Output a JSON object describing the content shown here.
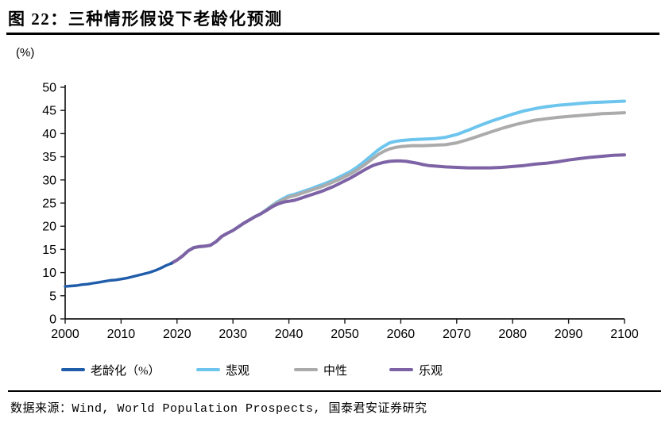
{
  "header": {
    "title": "图 22：三种情形假设下老龄化预测"
  },
  "footer": {
    "source": "数据来源：Wind, World Population Prospects, 国泰君安证券研究"
  },
  "colors": {
    "aging": "#1F5CA9",
    "pessimistic": "#6DC5EE",
    "neutral": "#ABABAB",
    "optimistic": "#7D63A5",
    "axis": "#1a1a1a",
    "rule": "#000000"
  },
  "chart_data": {
    "type": "line",
    "title": "三种情形假设下老龄化预测",
    "xlabel": "",
    "ylabel": "(%)",
    "xlim": [
      2000,
      2100
    ],
    "ylim": [
      0,
      50
    ],
    "x_ticks": [
      2000,
      2010,
      2020,
      2030,
      2040,
      2050,
      2060,
      2070,
      2080,
      2090,
      2100
    ],
    "y_ticks": [
      0,
      5,
      10,
      15,
      20,
      25,
      30,
      35,
      40,
      45,
      50
    ],
    "grid": false,
    "legend_position": "bottom",
    "series": [
      {
        "id": "aging",
        "name": "老龄化（%）",
        "color": "#1F5CA9",
        "points": [
          [
            2000,
            7.0
          ],
          [
            2001,
            7.1
          ],
          [
            2002,
            7.2
          ],
          [
            2003,
            7.4
          ],
          [
            2004,
            7.5
          ],
          [
            2005,
            7.7
          ],
          [
            2006,
            7.9
          ],
          [
            2007,
            8.1
          ],
          [
            2008,
            8.3
          ],
          [
            2009,
            8.4
          ],
          [
            2010,
            8.6
          ],
          [
            2011,
            8.8
          ],
          [
            2012,
            9.1
          ],
          [
            2013,
            9.4
          ],
          [
            2014,
            9.7
          ],
          [
            2015,
            10.0
          ],
          [
            2016,
            10.4
          ],
          [
            2017,
            10.9
          ],
          [
            2018,
            11.5
          ],
          [
            2019,
            12.0
          ]
        ]
      },
      {
        "id": "pessimistic",
        "name": "悲观",
        "color": "#6DC5EE",
        "points": [
          [
            2019,
            12.0
          ],
          [
            2020,
            12.7
          ],
          [
            2021,
            13.6
          ],
          [
            2022,
            14.7
          ],
          [
            2023,
            15.4
          ],
          [
            2024,
            15.6
          ],
          [
            2025,
            15.7
          ],
          [
            2026,
            15.9
          ],
          [
            2027,
            16.7
          ],
          [
            2028,
            17.8
          ],
          [
            2029,
            18.5
          ],
          [
            2030,
            19.1
          ],
          [
            2031,
            19.9
          ],
          [
            2032,
            20.7
          ],
          [
            2033,
            21.4
          ],
          [
            2034,
            22.1
          ],
          [
            2035,
            22.7
          ],
          [
            2036,
            23.6
          ],
          [
            2037,
            24.5
          ],
          [
            2038,
            25.3
          ],
          [
            2039,
            26.0
          ],
          [
            2040,
            26.6
          ],
          [
            2041,
            26.9
          ],
          [
            2042,
            27.3
          ],
          [
            2043,
            27.7
          ],
          [
            2044,
            28.1
          ],
          [
            2045,
            28.6
          ],
          [
            2046,
            29.0
          ],
          [
            2047,
            29.5
          ],
          [
            2048,
            30.0
          ],
          [
            2049,
            30.6
          ],
          [
            2050,
            31.2
          ],
          [
            2051,
            31.8
          ],
          [
            2052,
            32.6
          ],
          [
            2053,
            33.5
          ],
          [
            2054,
            34.5
          ],
          [
            2055,
            35.5
          ],
          [
            2056,
            36.5
          ],
          [
            2057,
            37.3
          ],
          [
            2058,
            38.0
          ],
          [
            2059,
            38.3
          ],
          [
            2060,
            38.5
          ],
          [
            2062,
            38.7
          ],
          [
            2064,
            38.8
          ],
          [
            2066,
            38.9
          ],
          [
            2068,
            39.2
          ],
          [
            2070,
            39.8
          ],
          [
            2072,
            40.7
          ],
          [
            2074,
            41.7
          ],
          [
            2076,
            42.6
          ],
          [
            2078,
            43.4
          ],
          [
            2080,
            44.2
          ],
          [
            2082,
            44.9
          ],
          [
            2084,
            45.4
          ],
          [
            2086,
            45.8
          ],
          [
            2088,
            46.1
          ],
          [
            2090,
            46.3
          ],
          [
            2092,
            46.5
          ],
          [
            2094,
            46.7
          ],
          [
            2096,
            46.8
          ],
          [
            2098,
            46.9
          ],
          [
            2100,
            47.0
          ]
        ]
      },
      {
        "id": "neutral",
        "name": "中性",
        "color": "#ABABAB",
        "points": [
          [
            2019,
            12.0
          ],
          [
            2020,
            12.7
          ],
          [
            2021,
            13.6
          ],
          [
            2022,
            14.7
          ],
          [
            2023,
            15.4
          ],
          [
            2024,
            15.6
          ],
          [
            2025,
            15.7
          ],
          [
            2026,
            15.9
          ],
          [
            2027,
            16.7
          ],
          [
            2028,
            17.8
          ],
          [
            2029,
            18.5
          ],
          [
            2030,
            19.1
          ],
          [
            2031,
            19.9
          ],
          [
            2032,
            20.7
          ],
          [
            2033,
            21.4
          ],
          [
            2034,
            22.1
          ],
          [
            2035,
            22.7
          ],
          [
            2036,
            23.5
          ],
          [
            2037,
            24.4
          ],
          [
            2038,
            25.1
          ],
          [
            2039,
            25.7
          ],
          [
            2040,
            26.3
          ],
          [
            2041,
            26.6
          ],
          [
            2042,
            27.0
          ],
          [
            2043,
            27.4
          ],
          [
            2044,
            27.8
          ],
          [
            2045,
            28.2
          ],
          [
            2046,
            28.6
          ],
          [
            2047,
            29.1
          ],
          [
            2048,
            29.6
          ],
          [
            2049,
            30.1
          ],
          [
            2050,
            30.7
          ],
          [
            2051,
            31.3
          ],
          [
            2052,
            32.0
          ],
          [
            2053,
            32.8
          ],
          [
            2054,
            33.7
          ],
          [
            2055,
            34.6
          ],
          [
            2056,
            35.5
          ],
          [
            2057,
            36.2
          ],
          [
            2058,
            36.7
          ],
          [
            2059,
            37.0
          ],
          [
            2060,
            37.2
          ],
          [
            2062,
            37.4
          ],
          [
            2064,
            37.4
          ],
          [
            2066,
            37.5
          ],
          [
            2068,
            37.6
          ],
          [
            2070,
            38.0
          ],
          [
            2072,
            38.7
          ],
          [
            2074,
            39.5
          ],
          [
            2076,
            40.3
          ],
          [
            2078,
            41.1
          ],
          [
            2080,
            41.8
          ],
          [
            2082,
            42.4
          ],
          [
            2084,
            42.9
          ],
          [
            2086,
            43.2
          ],
          [
            2088,
            43.5
          ],
          [
            2090,
            43.7
          ],
          [
            2092,
            43.9
          ],
          [
            2094,
            44.1
          ],
          [
            2096,
            44.3
          ],
          [
            2098,
            44.4
          ],
          [
            2100,
            44.5
          ]
        ]
      },
      {
        "id": "optimistic",
        "name": "乐观",
        "color": "#7D63A5",
        "points": [
          [
            2019,
            12.0
          ],
          [
            2020,
            12.7
          ],
          [
            2021,
            13.6
          ],
          [
            2022,
            14.7
          ],
          [
            2023,
            15.4
          ],
          [
            2024,
            15.6
          ],
          [
            2025,
            15.7
          ],
          [
            2026,
            15.9
          ],
          [
            2027,
            16.7
          ],
          [
            2028,
            17.8
          ],
          [
            2029,
            18.5
          ],
          [
            2030,
            19.1
          ],
          [
            2031,
            19.9
          ],
          [
            2032,
            20.7
          ],
          [
            2033,
            21.4
          ],
          [
            2034,
            22.1
          ],
          [
            2035,
            22.7
          ],
          [
            2036,
            23.4
          ],
          [
            2037,
            24.2
          ],
          [
            2038,
            24.8
          ],
          [
            2039,
            25.2
          ],
          [
            2040,
            25.4
          ],
          [
            2041,
            25.6
          ],
          [
            2042,
            26.0
          ],
          [
            2043,
            26.4
          ],
          [
            2044,
            26.8
          ],
          [
            2045,
            27.2
          ],
          [
            2046,
            27.6
          ],
          [
            2047,
            28.1
          ],
          [
            2048,
            28.6
          ],
          [
            2049,
            29.2
          ],
          [
            2050,
            29.8
          ],
          [
            2051,
            30.4
          ],
          [
            2052,
            31.1
          ],
          [
            2053,
            31.8
          ],
          [
            2054,
            32.5
          ],
          [
            2055,
            33.1
          ],
          [
            2056,
            33.5
          ],
          [
            2057,
            33.8
          ],
          [
            2058,
            34.0
          ],
          [
            2059,
            34.1
          ],
          [
            2060,
            34.1
          ],
          [
            2061,
            34.0
          ],
          [
            2062,
            33.8
          ],
          [
            2063,
            33.6
          ],
          [
            2064,
            33.3
          ],
          [
            2065,
            33.1
          ],
          [
            2066,
            33.0
          ],
          [
            2068,
            32.8
          ],
          [
            2070,
            32.7
          ],
          [
            2072,
            32.6
          ],
          [
            2074,
            32.6
          ],
          [
            2076,
            32.6
          ],
          [
            2078,
            32.7
          ],
          [
            2080,
            32.9
          ],
          [
            2082,
            33.1
          ],
          [
            2084,
            33.4
          ],
          [
            2086,
            33.6
          ],
          [
            2088,
            33.9
          ],
          [
            2090,
            34.3
          ],
          [
            2092,
            34.6
          ],
          [
            2094,
            34.9
          ],
          [
            2096,
            35.1
          ],
          [
            2098,
            35.3
          ],
          [
            2100,
            35.4
          ]
        ]
      }
    ]
  }
}
